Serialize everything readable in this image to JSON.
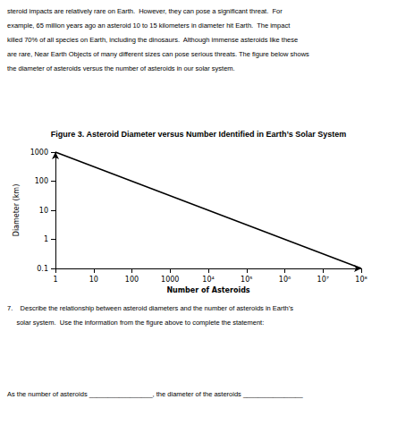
{
  "chart_data": {
    "type": "line",
    "title": "Figure 3. Asteroid Diameter versus Number Identified in Earth’s Solar System",
    "xlabel": "Number of Asteroids",
    "ylabel": "Diameter (km)",
    "x": [
      1,
      100000000
    ],
    "values": [
      1000,
      0.1
    ],
    "color": "#000000",
    "log": true,
    "grid": false,
    "xlim": [
      1,
      100000000
    ],
    "ylim": [
      0.1,
      1000
    ],
    "xticks": [
      1,
      10,
      100,
      1000,
      {
        "value": 10000,
        "label": "10⁴"
      },
      {
        "value": 100000,
        "label": "10⁵"
      },
      {
        "value": 1000000,
        "label": "10⁶"
      },
      {
        "value": 10000000,
        "label": "10⁷"
      },
      {
        "value": 100000000,
        "label": "10⁸"
      }
    ],
    "yticks": [
      0.1,
      1,
      10,
      100,
      1000
    ],
    "annotations": [
      "steroid impacts are relatively rare on Earth.  However, they can pose a significant threat.  For",
      "example, 65 million years ago an asteroid 10 to 15 kilometers in diameter hit Earth.  The impact",
      "killed 70% of all species on Earth, including the dinosaurs.  Although immense asteroids like these",
      "are rare, Near Earth Objects of many different sizes can pose serious threats. The figure below shows",
      "the diameter of asteroids versus the number of asteroids in our solar system.",
      "7.    Describe the relationship between asteroid diameters and the number of asteroids in Earth’s",
      "     solar system.  Use the information from the figure above to complete the statement:",
      "As the number of asteroids _________________, the diameter of the asteroids ________________"
    ]
  }
}
